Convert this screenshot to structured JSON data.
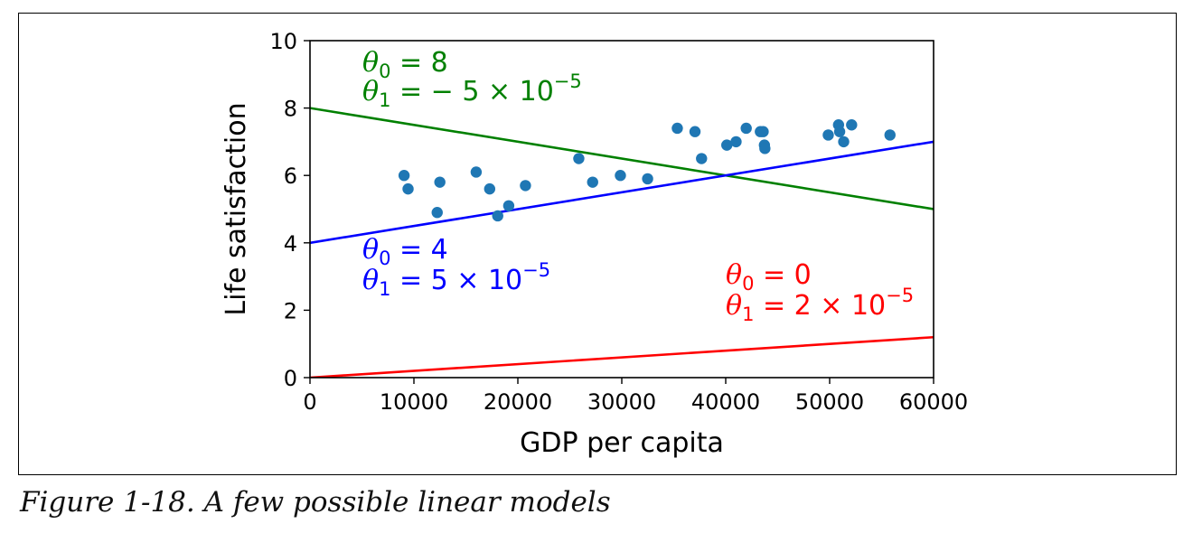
{
  "caption": "Figure 1-18. A few possible linear models",
  "chart_data": {
    "type": "scatter",
    "xlabel": "GDP per capita",
    "ylabel": "Life satisfaction",
    "xlim": [
      0,
      60000
    ],
    "ylim": [
      0,
      10
    ],
    "x_ticks": [
      0,
      10000,
      20000,
      30000,
      40000,
      50000,
      60000
    ],
    "x_tick_labels": [
      "0",
      "10000",
      "20000",
      "30000",
      "40000",
      "50000",
      "60000"
    ],
    "y_ticks": [
      0,
      2,
      4,
      6,
      8,
      10
    ],
    "y_tick_labels": [
      "0",
      "2",
      "4",
      "6",
      "8",
      "10"
    ],
    "grid": false,
    "colors": {
      "points": "#1f77b4",
      "model_green": "#008000",
      "model_blue": "#0000ff",
      "model_red": "#ff0000"
    },
    "points": {
      "x": [
        9054,
        9437,
        12239,
        12495,
        15991,
        17288,
        18064,
        19121,
        20732,
        25864,
        27195,
        29866,
        32485,
        35343,
        37044,
        37675,
        40106,
        40996,
        41973,
        43331,
        43603,
        43724,
        43770,
        49866,
        50855,
        50962,
        51350,
        52114,
        55805
      ],
      "y": [
        6.0,
        5.6,
        4.9,
        5.8,
        6.1,
        5.6,
        4.8,
        5.1,
        5.7,
        6.5,
        5.8,
        6.0,
        5.9,
        7.4,
        7.3,
        6.5,
        6.9,
        7.0,
        7.4,
        7.3,
        7.3,
        6.9,
        6.8,
        7.2,
        7.5,
        7.3,
        7.0,
        7.5,
        7.2
      ]
    },
    "models": [
      {
        "theta0": 8,
        "theta1": -5e-05,
        "color": "green",
        "label_line1": {
          "sym": "θ",
          "sub": "0",
          "rest": " = 8",
          "sup": ""
        },
        "label_line2": {
          "sym": "θ",
          "sub": "1",
          "rest": " = − 5 × 10",
          "sup": "−5"
        }
      },
      {
        "theta0": 4,
        "theta1": 5e-05,
        "color": "blue",
        "label_line1": {
          "sym": "θ",
          "sub": "0",
          "rest": " = 4",
          "sup": ""
        },
        "label_line2": {
          "sym": "θ",
          "sub": "1",
          "rest": " = 5 × 10",
          "sup": "−5"
        }
      },
      {
        "theta0": 0,
        "theta1": 2e-05,
        "color": "red",
        "label_line1": {
          "sym": "θ",
          "sub": "0",
          "rest": " = 0",
          "sup": ""
        },
        "label_line2": {
          "sym": "θ",
          "sub": "1",
          "rest": " = 2 × 10",
          "sup": "−5"
        }
      }
    ]
  }
}
